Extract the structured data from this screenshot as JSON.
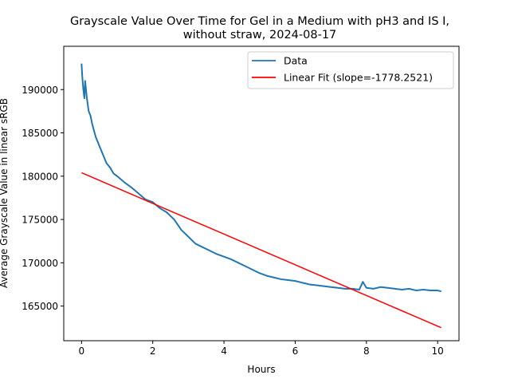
{
  "chart_data": {
    "type": "line",
    "title": "Grayscale Value Over Time for Gel in a Medium with pH3 and IS I,",
    "subtitle": "without straw, 2024-08-17",
    "xlabel": "Hours",
    "ylabel": "Average Grayscale Value in linear sRGB",
    "xlim": [
      -0.5,
      10.6
    ],
    "ylim": [
      161000,
      195000
    ],
    "x_ticks": [
      0,
      2,
      4,
      6,
      8,
      10
    ],
    "x_tick_labels": [
      "0",
      "2",
      "4",
      "6",
      "8",
      "10"
    ],
    "y_ticks": [
      165000,
      170000,
      175000,
      180000,
      185000,
      190000
    ],
    "y_tick_labels": [
      "165000",
      "170000",
      "175000",
      "180000",
      "185000",
      "190000"
    ],
    "grid": false,
    "legend_position": "top-right",
    "series": [
      {
        "name": "Data",
        "color": "#1f77b4",
        "x": [
          0.0,
          0.02,
          0.05,
          0.08,
          0.1,
          0.15,
          0.2,
          0.25,
          0.3,
          0.4,
          0.5,
          0.6,
          0.7,
          0.8,
          0.9,
          1.0,
          1.2,
          1.4,
          1.6,
          1.8,
          2.0,
          2.2,
          2.4,
          2.6,
          2.8,
          3.0,
          3.2,
          3.4,
          3.6,
          3.8,
          4.0,
          4.2,
          4.4,
          4.6,
          4.8,
          5.0,
          5.2,
          5.4,
          5.6,
          5.8,
          6.0,
          6.2,
          6.4,
          6.6,
          6.8,
          7.0,
          7.2,
          7.4,
          7.6,
          7.8,
          7.9,
          8.0,
          8.2,
          8.4,
          8.6,
          8.8,
          9.0,
          9.2,
          9.4,
          9.6,
          9.8,
          10.0,
          10.1
        ],
        "y": [
          193000,
          191500,
          190000,
          189000,
          191000,
          189000,
          187500,
          187000,
          186000,
          184500,
          183500,
          182500,
          181500,
          181000,
          180300,
          180000,
          179300,
          178700,
          178000,
          177300,
          177000,
          176300,
          175800,
          175000,
          173800,
          173000,
          172200,
          171800,
          171400,
          171000,
          170700,
          170400,
          170000,
          169600,
          169200,
          168800,
          168500,
          168300,
          168100,
          168000,
          167900,
          167700,
          167500,
          167400,
          167300,
          167200,
          167100,
          167000,
          167000,
          166900,
          167800,
          167100,
          167000,
          167200,
          167100,
          167000,
          166900,
          167000,
          166800,
          166900,
          166800,
          166800,
          166700
        ]
      },
      {
        "name": "Linear Fit (slope=-1778.2521)",
        "color": "#ff0000",
        "x": [
          0.0,
          10.1
        ],
        "y": [
          180400,
          162500
        ]
      }
    ]
  }
}
